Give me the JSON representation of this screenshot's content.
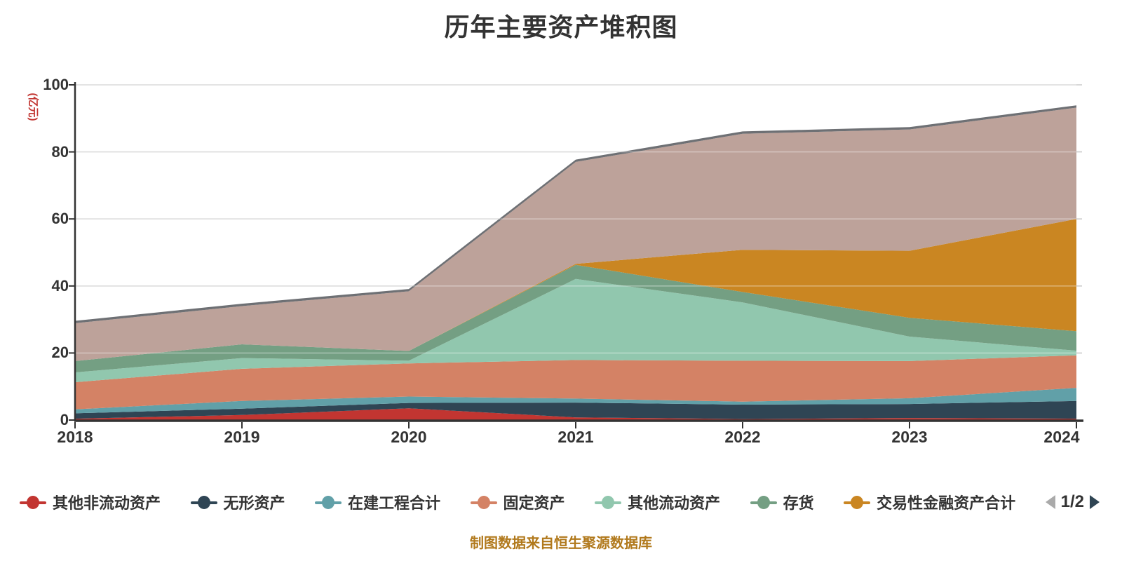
{
  "title": "历年主要资产堆积图",
  "caption": "制图数据来自恒生聚源数据库",
  "y_axis": {
    "name": "(亿元)",
    "ticks": [
      "0",
      "20",
      "40",
      "60",
      "80",
      "100"
    ],
    "max": 100
  },
  "x_axis": {
    "categories": [
      "2018",
      "2019",
      "2020",
      "2021",
      "2022",
      "2023",
      "2024"
    ]
  },
  "chart_data": {
    "type": "area",
    "stacked": true,
    "categories": [
      "2018",
      "2019",
      "2020",
      "2021",
      "2022",
      "2023",
      "2024"
    ],
    "ylim": [
      0,
      100
    ],
    "ylabel": "(亿元)",
    "grid": true,
    "legend_position": "bottom",
    "series": [
      {
        "name": "其他非流动资产",
        "color": "#c23531",
        "values": [
          0.4,
          1.5,
          3.5,
          0.8,
          0.3,
          0.6,
          0.4
        ]
      },
      {
        "name": "无形资产",
        "color": "#2f4554",
        "values": [
          1.6,
          1.9,
          1.6,
          4.4,
          4.3,
          4.2,
          5.3
        ]
      },
      {
        "name": "在建工程合计",
        "color": "#61a0a8",
        "values": [
          1.2,
          2.3,
          1.9,
          1.2,
          0.9,
          1.7,
          3.9
        ]
      },
      {
        "name": "固定资产",
        "color": "#d48265",
        "values": [
          8.1,
          9.6,
          9.9,
          11.5,
          12.2,
          11.1,
          9.7
        ]
      },
      {
        "name": "其他流动资产",
        "color": "#91c7ae",
        "values": [
          2.9,
          3.2,
          0.8,
          24.2,
          17.4,
          7.3,
          1.4
        ]
      },
      {
        "name": "存货",
        "color": "#749f83",
        "values": [
          3.4,
          4.1,
          2.9,
          4.2,
          3.1,
          5.6,
          5.8
        ]
      },
      {
        "name": "交易性金融资产合计",
        "color": "#ca8622",
        "values": [
          0,
          0,
          0,
          0.3,
          12.6,
          20.0,
          33.5
        ]
      },
      {
        "name": "",
        "color": "#bda29a",
        "values": [
          11.3,
          11.4,
          17.8,
          30.4,
          34.6,
          36.2,
          33.2
        ]
      },
      {
        "name": "",
        "color": "#6e7074",
        "values": [
          0.7,
          0.7,
          0.7,
          0.7,
          0.7,
          0.7,
          0.7
        ]
      }
    ]
  },
  "legend": {
    "items": [
      {
        "label": "其他非流动资产",
        "color": "#c23531"
      },
      {
        "label": "无形资产",
        "color": "#2f4554"
      },
      {
        "label": "在建工程合计",
        "color": "#61a0a8"
      },
      {
        "label": "固定资产",
        "color": "#d48265"
      },
      {
        "label": "其他流动资产",
        "color": "#91c7ae"
      },
      {
        "label": "存货",
        "color": "#749f83"
      },
      {
        "label": "交易性金融资产合计",
        "color": "#ca8622"
      }
    ],
    "pager": {
      "page_text": "1/2",
      "prev_color": "#aaaaaa",
      "next_color": "#2f4554"
    }
  },
  "colors": {
    "background": "#ffffff",
    "title": "#333333",
    "axis_label": "#333333",
    "axis_line": "#333333",
    "grid": "#cccccc",
    "grid_overlay": "rgba(255,255,255,0.35)",
    "y_name": "#c23531",
    "caption": "#b1791c"
  }
}
